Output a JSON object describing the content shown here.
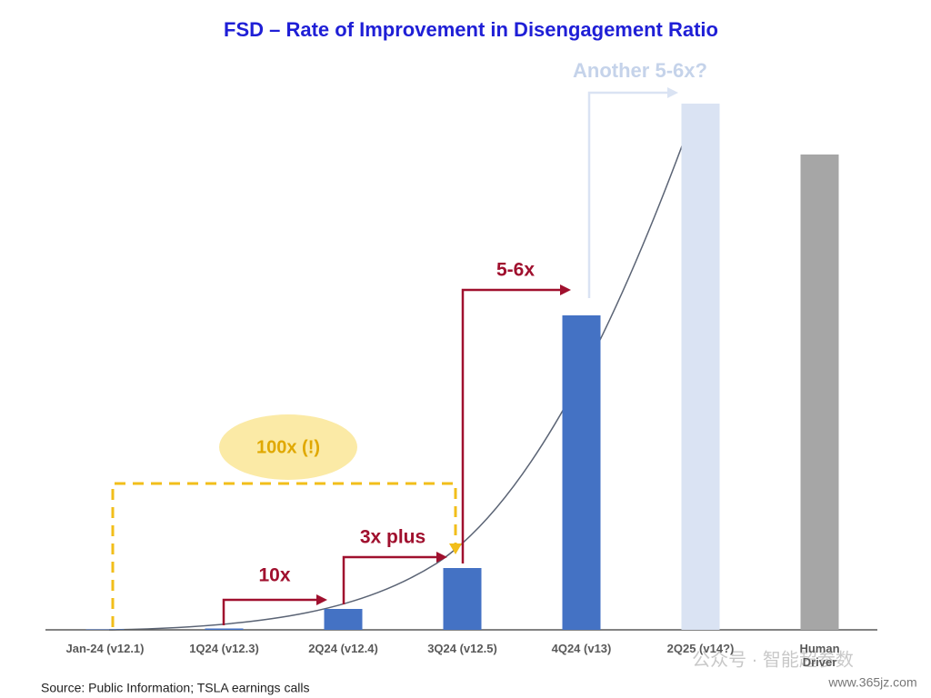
{
  "chart_data": {
    "type": "bar",
    "title": "FSD – Rate of Improvement in Disengagement Ratio",
    "categories": [
      "Jan-24 (v12.1)",
      "1Q24 (v12.3)",
      "2Q24 (v12.4)",
      "3Q24 (v12.5)",
      "4Q24 (v13)",
      "2Q25 (v14?)",
      "Human Driver"
    ],
    "values": [
      0.5,
      1.5,
      23,
      68,
      346,
      579,
      523
    ],
    "colors": [
      "#4472c4",
      "#4472c4",
      "#4472c4",
      "#4472c4",
      "#4472c4",
      "#dae3f3",
      "#a6a6a6"
    ],
    "annotations": [
      "10x",
      "3x plus",
      "5-6x",
      "Another 5-6x?",
      "100x (!)"
    ],
    "source": "Source: Public Information; TSLA earnings calls",
    "watermark": [
      "公众号 · 智能超参数",
      "www.365jz.com"
    ]
  }
}
